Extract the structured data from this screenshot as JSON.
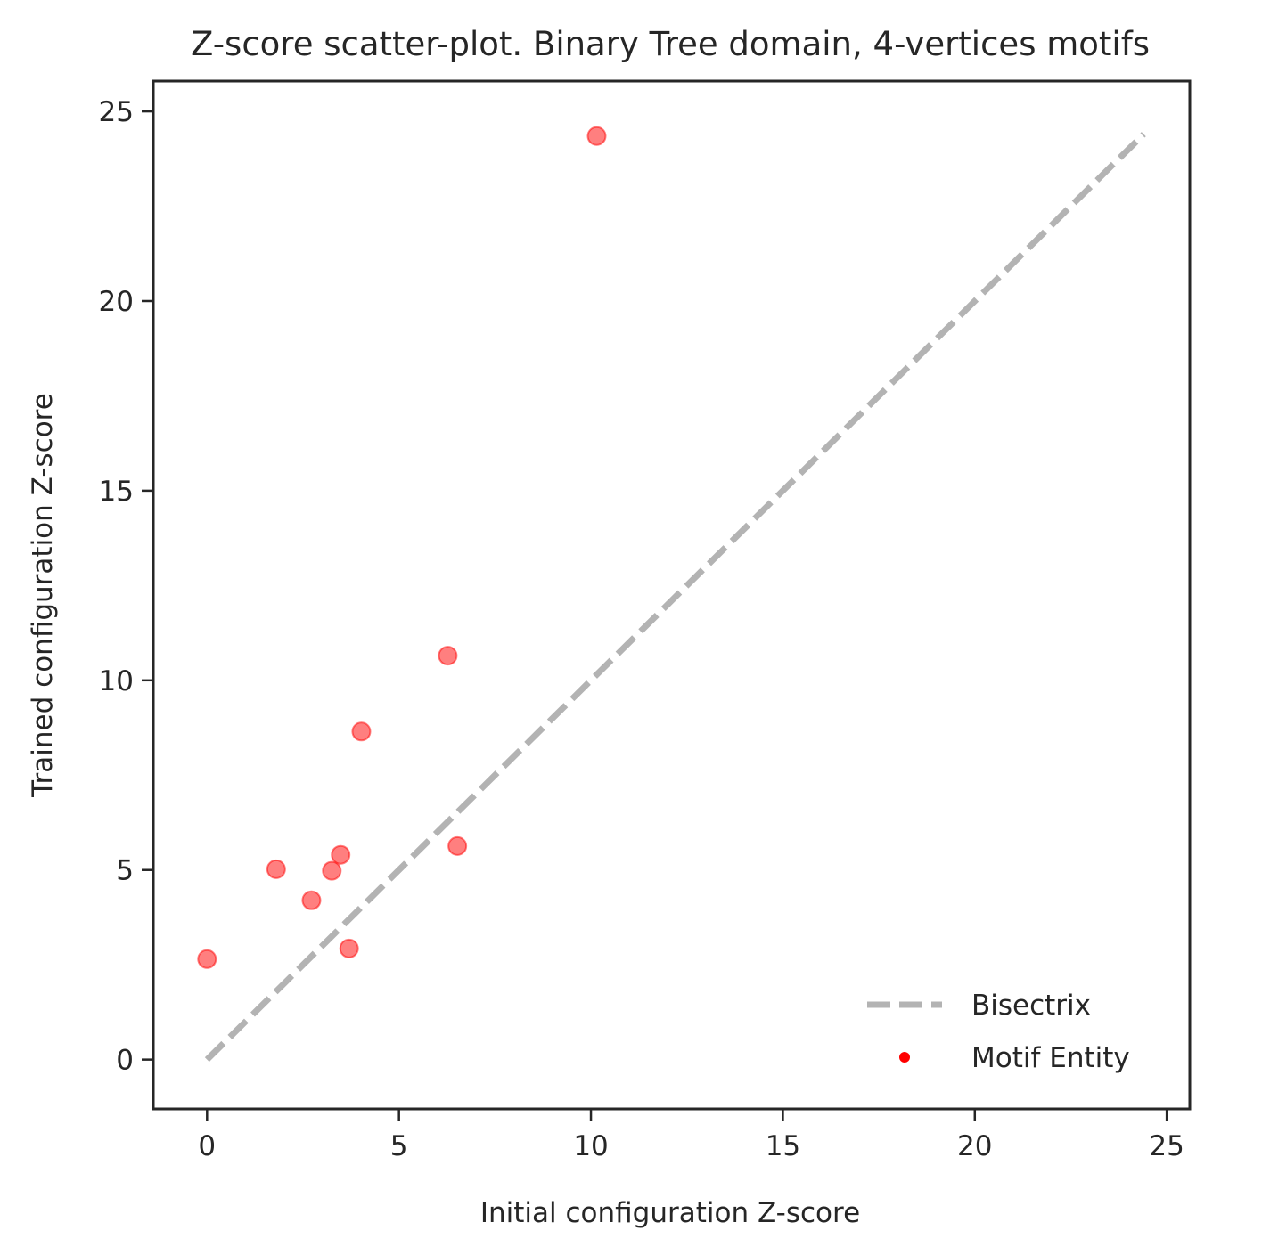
{
  "chart_data": {
    "type": "scatter",
    "title": "Z-score scatter-plot. Binary Tree domain, 4-vertices motifs",
    "xlabel": "Initial configuration Z-score",
    "ylabel": "Trained configuration Z-score",
    "xlim": [
      -1.4,
      25.6
    ],
    "ylim": [
      -1.3,
      25.8
    ],
    "xticks": [
      0,
      5,
      10,
      15,
      20,
      25
    ],
    "yticks": [
      0,
      5,
      10,
      15,
      20,
      25
    ],
    "xtick_labels": [
      "0",
      "5",
      "10",
      "15",
      "20",
      "25"
    ],
    "ytick_labels": [
      "0",
      "5",
      "10",
      "15",
      "20",
      "25"
    ],
    "grid": false,
    "legend_position": "lower-right",
    "series": [
      {
        "name": "Bisectrix",
        "kind": "line",
        "style": "dashed",
        "color": "#b3b3b3",
        "x": [
          0,
          24.4
        ],
        "y": [
          0,
          24.4
        ]
      },
      {
        "name": "Motif Entity",
        "kind": "scatter",
        "color": "#ff0000",
        "points": [
          {
            "x": 0.0,
            "y": 2.65
          },
          {
            "x": 1.8,
            "y": 5.02
          },
          {
            "x": 2.72,
            "y": 4.2
          },
          {
            "x": 3.25,
            "y": 4.98
          },
          {
            "x": 3.48,
            "y": 5.4
          },
          {
            "x": 3.7,
            "y": 2.93
          },
          {
            "x": 4.02,
            "y": 8.65
          },
          {
            "x": 6.27,
            "y": 10.65
          },
          {
            "x": 6.52,
            "y": 5.63
          },
          {
            "x": 10.15,
            "y": 24.35
          }
        ]
      }
    ]
  }
}
